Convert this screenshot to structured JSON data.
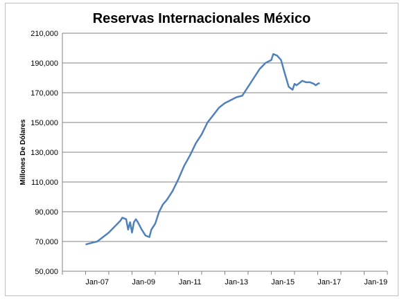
{
  "chart_data": {
    "type": "line",
    "title": "Reservas Internacionales México",
    "xlabel": "",
    "ylabel": "Millones De Dólares",
    "ylim": [
      50000,
      210000
    ],
    "yticks": [
      50000,
      70000,
      90000,
      110000,
      130000,
      150000,
      170000,
      190000,
      210000
    ],
    "ytick_labels": [
      "50,000",
      "70,000",
      "90,000",
      "110,000",
      "130,000",
      "150,000",
      "170,000",
      "190,000",
      "210,000"
    ],
    "xlim": [
      "2006-01",
      "2020-01"
    ],
    "xtick_labels": [
      "Jan-07",
      "Jan-09",
      "Jan-11",
      "Jan-13",
      "Jan-15",
      "Jan-17",
      "Jan-19"
    ],
    "grid": "horizontal",
    "line_color": "#4f81bd",
    "series": [
      {
        "x": [
          "2007-01",
          "2007-04",
          "2007-07",
          "2007-10",
          "2008-01",
          "2008-04",
          "2008-07",
          "2008-08",
          "2008-10",
          "2008-11",
          "2008-12",
          "2009-01",
          "2009-02",
          "2009-03",
          "2009-04",
          "2009-06",
          "2009-08",
          "2009-10",
          "2009-11",
          "2010-01",
          "2010-03",
          "2010-05",
          "2010-07",
          "2010-10",
          "2011-01",
          "2011-04",
          "2011-07",
          "2011-10",
          "2012-01",
          "2012-04",
          "2012-07",
          "2012-10",
          "2013-01",
          "2013-04",
          "2013-07",
          "2013-10",
          "2014-01",
          "2014-04",
          "2014-07",
          "2014-10",
          "2015-01",
          "2015-02",
          "2015-04",
          "2015-06",
          "2015-08",
          "2015-10",
          "2015-12",
          "2016-01",
          "2016-02",
          "2016-03",
          "2016-05",
          "2016-07",
          "2016-09",
          "2016-11",
          "2016-12",
          "2017-01",
          "2017-02"
        ],
        "y": [
          68000,
          69000,
          70000,
          73000,
          76000,
          80000,
          84000,
          86000,
          85000,
          78000,
          83000,
          76000,
          83000,
          85000,
          83000,
          78000,
          74000,
          73000,
          78000,
          82000,
          90000,
          95000,
          98000,
          104000,
          112000,
          121000,
          128000,
          136000,
          142000,
          150000,
          155000,
          160000,
          163000,
          165000,
          167000,
          168000,
          174000,
          180000,
          186000,
          190000,
          192000,
          196000,
          195000,
          192000,
          183000,
          174000,
          172000,
          176000,
          175000,
          176000,
          178000,
          177000,
          177000,
          176000,
          175000,
          176000,
          176500
        ]
      }
    ]
  }
}
